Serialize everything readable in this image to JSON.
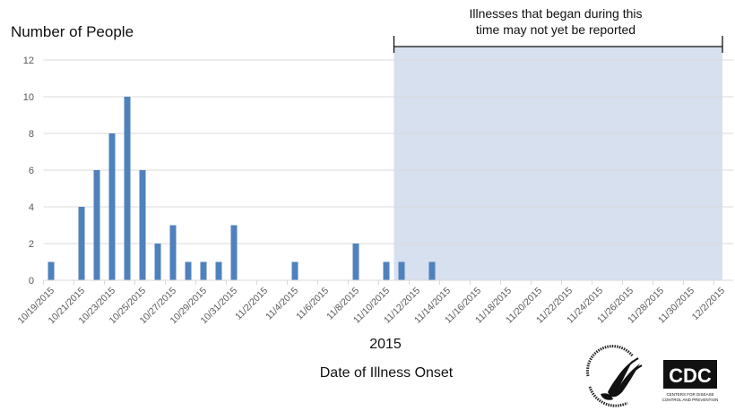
{
  "chart_data": {
    "type": "bar",
    "title": "",
    "ylabel": "Number of People",
    "xlabel": "Date of Illness Onset",
    "xlabel_year": "2015",
    "ylim": [
      0,
      12
    ],
    "yticks": [
      0,
      2,
      4,
      6,
      8,
      10,
      12
    ],
    "grid": true,
    "bar_color": "#4F81BD",
    "categories": [
      "10/19/2015",
      "10/20/2015",
      "10/21/2015",
      "10/22/2015",
      "10/23/2015",
      "10/24/2015",
      "10/25/2015",
      "10/26/2015",
      "10/27/2015",
      "10/28/2015",
      "10/29/2015",
      "10/30/2015",
      "10/31/2015",
      "11/1/2015",
      "11/2/2015",
      "11/3/2015",
      "11/4/2015",
      "11/5/2015",
      "11/6/2015",
      "11/7/2015",
      "11/8/2015",
      "11/9/2015",
      "11/10/2015",
      "11/11/2015",
      "11/12/2015",
      "11/13/2015",
      "11/14/2015",
      "11/15/2015",
      "11/16/2015",
      "11/17/2015",
      "11/18/2015",
      "11/19/2015",
      "11/20/2015",
      "11/21/2015",
      "11/22/2015",
      "11/23/2015",
      "11/24/2015",
      "11/25/2015",
      "11/26/2015",
      "11/27/2015",
      "11/28/2015",
      "11/29/2015",
      "11/30/2015",
      "12/1/2015",
      "12/2/2015"
    ],
    "values": [
      1,
      0,
      4,
      6,
      8,
      10,
      6,
      2,
      3,
      1,
      1,
      1,
      3,
      0,
      0,
      0,
      1,
      0,
      0,
      0,
      2,
      0,
      1,
      1,
      0,
      1,
      0,
      0,
      0,
      0,
      0,
      0,
      0,
      0,
      0,
      0,
      0,
      0,
      0,
      0,
      0,
      0,
      0,
      0,
      0
    ],
    "tick_labels": [
      "10/19/2015",
      "10/21/2015",
      "10/23/2015",
      "10/25/2015",
      "10/27/2015",
      "10/29/2015",
      "10/31/2015",
      "11/2/2015",
      "11/4/2015",
      "11/6/2015",
      "11/8/2015",
      "11/10/2015",
      "11/12/2015",
      "11/14/2015",
      "11/16/2015",
      "11/18/2015",
      "11/20/2015",
      "11/22/2015",
      "11/24/2015",
      "11/26/2015",
      "11/28/2015",
      "11/30/2015",
      "12/2/2015"
    ],
    "annotations": [
      {
        "text": "Illnesses that began during this time may not yet be reported",
        "type": "shaded-region",
        "start_after": "11/10/2015",
        "end": "12/2/2015",
        "color": "#D6E0EE"
      }
    ],
    "legend": null
  },
  "labels": {
    "y_axis_title": "Number of People",
    "annotation_line1": "Illnesses that began during this",
    "annotation_line2": "time may not yet be reported",
    "year": "2015",
    "x_axis_title": "Date of Illness Onset"
  },
  "logos": {
    "hhs": "Department of Health & Human Services USA",
    "cdc": "CDC",
    "cdc_sub1": "CENTERS FOR DISEASE",
    "cdc_sub2": "CONTROL AND PREVENTION"
  },
  "colors": {
    "bar": "#4F81BD",
    "shade": "#D6E0EE",
    "grid": "#D9D9D9",
    "tick_text": "#595959"
  }
}
